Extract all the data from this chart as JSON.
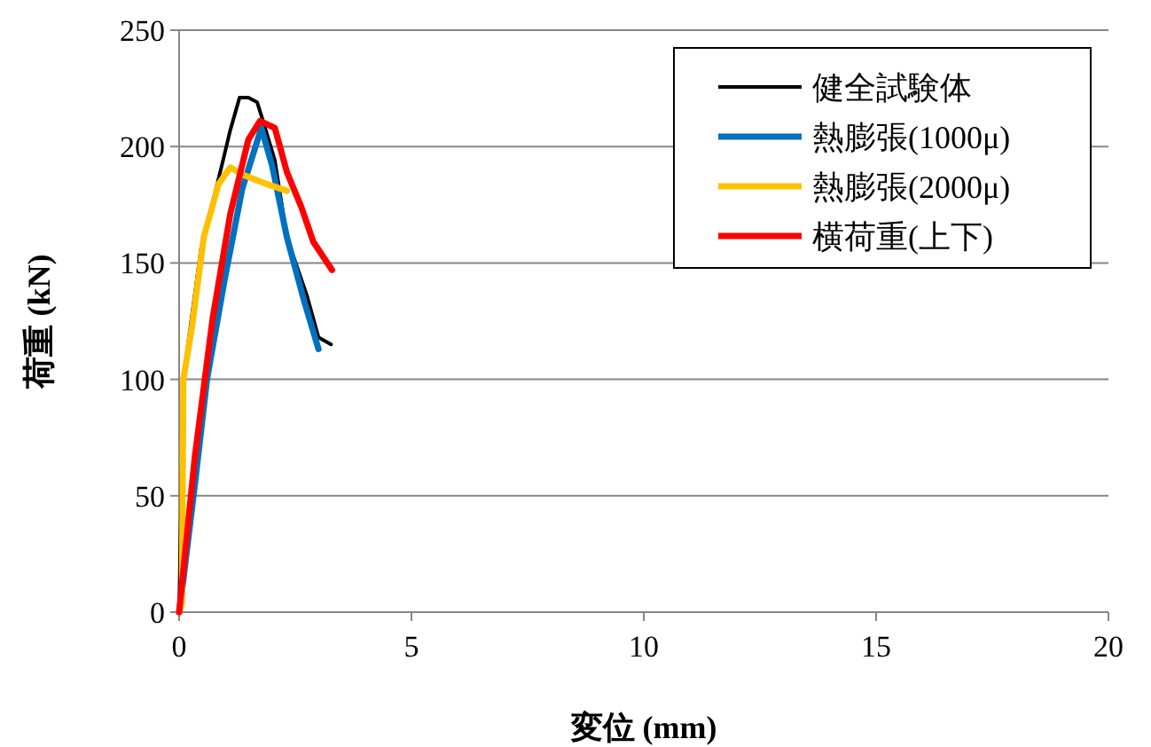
{
  "chart_data": {
    "type": "line",
    "xlabel": "変位 (mm)",
    "ylabel": "荷重 (kN)",
    "xlim": [
      0,
      20
    ],
    "xticks": [
      0,
      5,
      10,
      15,
      20
    ],
    "ylim": [
      0,
      250
    ],
    "yticks": [
      0,
      50,
      100,
      150,
      200,
      250
    ],
    "grid": "y",
    "legend": "top right",
    "marker": "none",
    "line_style": "solid",
    "series": [
      {
        "name": "健全試験体",
        "color": "#000000",
        "x": [
          0,
          0.09,
          0.47,
          0.92,
          1.1,
          1.3,
          1.49,
          1.68,
          1.79,
          2.06,
          2.32,
          2.75,
          3.0,
          3.27
        ],
        "values": [
          0,
          100,
          156,
          192,
          207,
          221,
          221,
          219,
          212,
          194,
          161,
          136,
          118,
          115
        ]
      },
      {
        "name": "熱膨張(1000μ)",
        "color": "#0070c0",
        "x": [
          0,
          0.03,
          0.34,
          0.6,
          0.98,
          1.36,
          1.77,
          2.0,
          2.32,
          2.7,
          3.0
        ],
        "values": [
          0,
          4,
          55,
          100,
          143,
          182,
          208,
          192,
          161,
          133,
          113
        ]
      },
      {
        "name": "熱膨張(2000μ)",
        "color": "#ffc000",
        "x": [
          0,
          0.06,
          0.09,
          0.28,
          0.53,
          0.85,
          1.1,
          1.36,
          1.87,
          2.32
        ],
        "values": [
          0,
          4,
          100,
          123,
          161,
          184,
          191,
          188,
          184,
          181
        ]
      },
      {
        "name": "横荷重(上下)",
        "color": "#ff0000",
        "x": [
          0,
          0.34,
          0.72,
          1.1,
          1.49,
          1.74,
          2.06,
          2.32,
          2.63,
          2.89,
          3.29
        ],
        "values": [
          0,
          67,
          126,
          171,
          203,
          211,
          208,
          189,
          174,
          159,
          147
        ]
      }
    ]
  }
}
